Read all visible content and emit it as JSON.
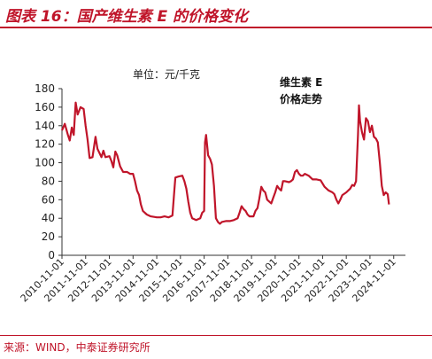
{
  "figure": {
    "title": "图表 16：国产维生素 E 的价格变化",
    "source": "来源：WIND，中泰证券研究所"
  },
  "chart_data": {
    "type": "line",
    "unit_label": "单位：元/千克",
    "legend": {
      "line1": "维生素 E",
      "line2": "价格走势",
      "placement": "top-right"
    },
    "ylim": [
      0,
      180
    ],
    "yticks": [
      0,
      20,
      40,
      60,
      80,
      100,
      120,
      140,
      160,
      180
    ],
    "xlim": [
      "2010-11-01",
      "2025-05-01"
    ],
    "xticks": [
      "2010-11-01",
      "2011-11-01",
      "2012-11-01",
      "2013-11-01",
      "2014-11-01",
      "2015-11-01",
      "2016-11-01",
      "2017-11-01",
      "2018-11-01",
      "2019-11-01",
      "2020-11-01",
      "2021-11-01",
      "2022-11-01",
      "2023-11-01",
      "2024-11-01"
    ],
    "grid": false,
    "color": "#c0152a",
    "series": [
      {
        "name": "维生素 E",
        "points": [
          [
            "2010-11-01",
            135
          ],
          [
            "2010-12-15",
            142
          ],
          [
            "2011-02-01",
            130
          ],
          [
            "2011-03-01",
            124
          ],
          [
            "2011-04-01",
            138
          ],
          [
            "2011-05-01",
            130
          ],
          [
            "2011-06-01",
            165
          ],
          [
            "2011-07-01",
            152
          ],
          [
            "2011-08-15",
            160
          ],
          [
            "2011-10-01",
            158
          ],
          [
            "2011-11-01",
            140
          ],
          [
            "2011-12-01",
            125
          ],
          [
            "2012-01-01",
            105
          ],
          [
            "2012-02-15",
            106
          ],
          [
            "2012-04-01",
            128
          ],
          [
            "2012-05-01",
            115
          ],
          [
            "2012-07-01",
            106
          ],
          [
            "2012-08-01",
            113
          ],
          [
            "2012-09-01",
            106
          ],
          [
            "2012-11-01",
            107
          ],
          [
            "2012-12-01",
            102
          ],
          [
            "2013-01-01",
            95
          ],
          [
            "2013-02-01",
            112
          ],
          [
            "2013-03-01",
            108
          ],
          [
            "2013-04-15",
            96
          ],
          [
            "2013-06-01",
            90
          ],
          [
            "2013-08-01",
            90
          ],
          [
            "2013-09-15",
            88
          ],
          [
            "2013-11-01",
            88
          ],
          [
            "2013-12-01",
            80
          ],
          [
            "2014-01-01",
            70
          ],
          [
            "2014-02-01",
            65
          ],
          [
            "2014-03-01",
            55
          ],
          [
            "2014-04-01",
            48
          ],
          [
            "2014-05-01",
            46
          ],
          [
            "2014-06-01",
            44
          ],
          [
            "2014-08-01",
            42
          ],
          [
            "2014-11-01",
            41
          ],
          [
            "2015-01-01",
            41
          ],
          [
            "2015-03-01",
            42
          ],
          [
            "2015-05-01",
            41
          ],
          [
            "2015-07-01",
            43
          ],
          [
            "2015-08-01",
            72
          ],
          [
            "2015-08-15",
            84
          ],
          [
            "2015-10-01",
            85
          ],
          [
            "2015-12-01",
            86
          ],
          [
            "2016-01-01",
            80
          ],
          [
            "2016-02-01",
            72
          ],
          [
            "2016-03-01",
            58
          ],
          [
            "2016-04-01",
            46
          ],
          [
            "2016-05-01",
            40
          ],
          [
            "2016-07-01",
            38
          ],
          [
            "2016-09-01",
            40
          ],
          [
            "2016-10-01",
            46
          ],
          [
            "2016-11-01",
            48
          ],
          [
            "2016-11-15",
            122
          ],
          [
            "2016-12-01",
            130
          ],
          [
            "2017-01-01",
            108
          ],
          [
            "2017-02-01",
            104
          ],
          [
            "2017-03-01",
            98
          ],
          [
            "2017-04-01",
            75
          ],
          [
            "2017-05-01",
            40
          ],
          [
            "2017-06-01",
            36
          ],
          [
            "2017-07-01",
            34
          ],
          [
            "2017-08-01",
            36
          ],
          [
            "2017-10-01",
            37
          ],
          [
            "2017-12-01",
            37
          ],
          [
            "2018-02-01",
            38
          ],
          [
            "2018-04-01",
            40
          ],
          [
            "2018-05-01",
            46
          ],
          [
            "2018-06-01",
            53
          ],
          [
            "2018-07-01",
            50
          ],
          [
            "2018-08-01",
            48
          ],
          [
            "2018-09-01",
            44
          ],
          [
            "2018-10-01",
            42
          ],
          [
            "2018-12-01",
            42
          ],
          [
            "2019-01-01",
            48
          ],
          [
            "2019-02-01",
            51
          ],
          [
            "2019-03-01",
            61
          ],
          [
            "2019-04-01",
            74
          ],
          [
            "2019-05-01",
            70
          ],
          [
            "2019-06-01",
            68
          ],
          [
            "2019-07-01",
            60
          ],
          [
            "2019-09-01",
            56
          ],
          [
            "2019-10-01",
            62
          ],
          [
            "2019-11-01",
            68
          ],
          [
            "2019-12-01",
            75
          ],
          [
            "2020-01-01",
            72
          ],
          [
            "2020-02-01",
            70
          ],
          [
            "2020-03-01",
            80
          ],
          [
            "2020-04-01",
            80
          ],
          [
            "2020-06-01",
            79
          ],
          [
            "2020-07-01",
            80
          ],
          [
            "2020-08-01",
            82
          ],
          [
            "2020-09-01",
            90
          ],
          [
            "2020-10-01",
            92
          ],
          [
            "2020-11-01",
            88
          ],
          [
            "2020-12-01",
            86
          ],
          [
            "2021-01-01",
            86
          ],
          [
            "2021-02-01",
            88
          ],
          [
            "2021-04-01",
            86
          ],
          [
            "2021-05-01",
            84
          ],
          [
            "2021-06-01",
            82
          ],
          [
            "2021-08-01",
            82
          ],
          [
            "2021-10-01",
            81
          ],
          [
            "2021-12-01",
            74
          ],
          [
            "2022-01-01",
            72
          ],
          [
            "2022-02-01",
            70
          ],
          [
            "2022-04-01",
            68
          ],
          [
            "2022-05-01",
            66
          ],
          [
            "2022-06-01",
            60
          ],
          [
            "2022-07-01",
            56
          ],
          [
            "2022-08-01",
            60
          ],
          [
            "2022-09-01",
            65
          ],
          [
            "2022-11-01",
            68
          ],
          [
            "2023-01-01",
            72
          ],
          [
            "2023-02-01",
            76
          ],
          [
            "2023-03-01",
            75
          ],
          [
            "2023-04-01",
            80
          ],
          [
            "2023-05-01",
            130
          ],
          [
            "2023-05-15",
            162
          ],
          [
            "2023-06-01",
            145
          ],
          [
            "2023-07-01",
            133
          ],
          [
            "2023-08-01",
            125
          ],
          [
            "2023-09-01",
            148
          ],
          [
            "2023-10-01",
            145
          ],
          [
            "2023-11-01",
            133
          ],
          [
            "2023-12-01",
            140
          ],
          [
            "2024-01-01",
            128
          ],
          [
            "2024-02-01",
            126
          ],
          [
            "2024-03-01",
            122
          ],
          [
            "2024-04-01",
            100
          ],
          [
            "2024-05-01",
            75
          ],
          [
            "2024-06-01",
            65
          ],
          [
            "2024-07-01",
            68
          ],
          [
            "2024-08-01",
            66
          ],
          [
            "2024-08-20",
            55
          ]
        ]
      }
    ]
  }
}
